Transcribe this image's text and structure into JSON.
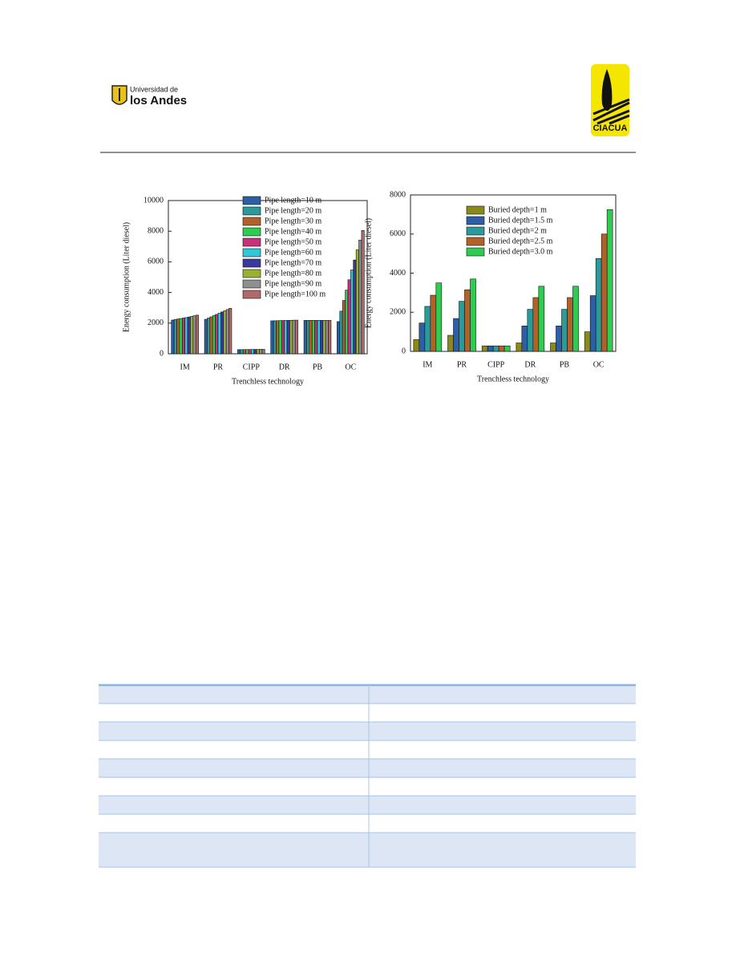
{
  "header": {
    "university_line1": "Universidad de",
    "university_line2": "los Andes",
    "center_name": "CIACUA"
  },
  "chart_data": [
    {
      "type": "bar",
      "ylabel": "Energy consumption (Liter diesel)",
      "xlabel": "Trenchless technology",
      "categories": [
        "IM",
        "PR",
        "CIPP",
        "DR",
        "PB",
        "OC"
      ],
      "ylim": [
        0,
        10000
      ],
      "yticks": [
        0,
        2000,
        4000,
        6000,
        8000,
        10000
      ],
      "legend": "upper right",
      "series": [
        {
          "name": "Pipe length=10 m",
          "color": "#2e5ea6",
          "values": [
            2200,
            2250,
            270,
            2150,
            2180,
            2100
          ]
        },
        {
          "name": "Pipe length=20 m",
          "color": "#2a9a9a",
          "values": [
            2240,
            2330,
            270,
            2155,
            2180,
            2780
          ]
        },
        {
          "name": "Pipe length=30 m",
          "color": "#b0622a",
          "values": [
            2270,
            2410,
            275,
            2160,
            2180,
            3480
          ]
        },
        {
          "name": "Pipe length=40 m",
          "color": "#2ecc50",
          "values": [
            2300,
            2490,
            275,
            2165,
            2180,
            4150
          ]
        },
        {
          "name": "Pipe length=50 m",
          "color": "#c8307a",
          "values": [
            2330,
            2570,
            280,
            2170,
            2180,
            4830
          ]
        },
        {
          "name": "Pipe length=60 m",
          "color": "#30c8d8",
          "values": [
            2360,
            2650,
            280,
            2175,
            2180,
            5470
          ]
        },
        {
          "name": "Pipe length=70 m",
          "color": "#3a3aa0",
          "values": [
            2400,
            2730,
            285,
            2180,
            2180,
            6120
          ]
        },
        {
          "name": "Pipe length=80 m",
          "color": "#9ab030",
          "values": [
            2440,
            2810,
            285,
            2185,
            2180,
            6780
          ]
        },
        {
          "name": "Pipe length=90 m",
          "color": "#909090",
          "values": [
            2480,
            2890,
            290,
            2190,
            2180,
            7420
          ]
        },
        {
          "name": "Pipe length=100 m",
          "color": "#b06a6a",
          "values": [
            2520,
            2970,
            290,
            2195,
            2180,
            8050
          ]
        }
      ]
    },
    {
      "type": "bar",
      "ylabel": "Energy consumption (Liter diesel)",
      "xlabel": "Trenchless technology",
      "categories": [
        "IM",
        "PR",
        "CIPP",
        "DR",
        "PB",
        "OC"
      ],
      "ylim": [
        0,
        8000
      ],
      "yticks": [
        0,
        2000,
        4000,
        6000,
        8000
      ],
      "legend": "upper left",
      "series": [
        {
          "name": "Buried depth=1 m",
          "color": "#8a8a1a",
          "values": [
            600,
            820,
            280,
            430,
            430,
            1000
          ]
        },
        {
          "name": "Buried depth=1.5 m",
          "color": "#2e5ea6",
          "values": [
            1450,
            1680,
            280,
            1300,
            1300,
            2850
          ]
        },
        {
          "name": "Buried depth=2 m",
          "color": "#2a9a9a",
          "values": [
            2300,
            2560,
            280,
            2150,
            2150,
            4750
          ]
        },
        {
          "name": "Buried depth=2.5 m",
          "color": "#b0622a",
          "values": [
            2870,
            3150,
            280,
            2750,
            2750,
            6000
          ]
        },
        {
          "name": "Buried depth=3.0 m",
          "color": "#2ecc50",
          "values": [
            3500,
            3700,
            280,
            3330,
            3330,
            7250
          ]
        }
      ]
    }
  ]
}
